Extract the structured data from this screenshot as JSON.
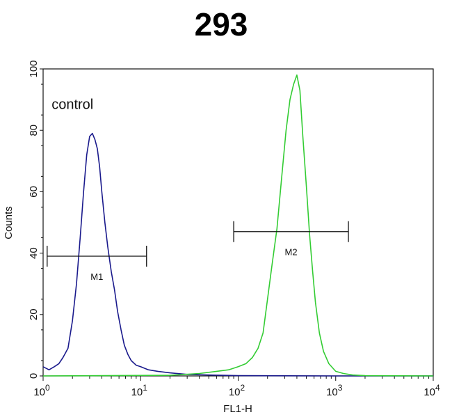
{
  "chart_data": {
    "type": "line",
    "title": "293",
    "xlabel": "FL1-H",
    "ylabel": "Counts",
    "x_scale": "log",
    "xlim": [
      1,
      10000
    ],
    "ylim": [
      0,
      100
    ],
    "x_ticks": [
      {
        "value": 1,
        "base": "10",
        "exp": "0"
      },
      {
        "value": 10,
        "base": "10",
        "exp": "1"
      },
      {
        "value": 100,
        "base": "10",
        "exp": "2"
      },
      {
        "value": 1000,
        "base": "10",
        "exp": "3"
      },
      {
        "value": 10000,
        "base": "10",
        "exp": "4"
      }
    ],
    "y_ticks": [
      0,
      20,
      40,
      60,
      80,
      100
    ],
    "grid": false,
    "annotations": [
      {
        "text": "control",
        "x": 2.0,
        "y": 87
      }
    ],
    "markers": [
      {
        "label": "M1",
        "x_start": 1.1,
        "x_end": 11.5,
        "y": 39
      },
      {
        "label": "M2",
        "x_start": 90,
        "x_end": 1350,
        "y": 47
      }
    ],
    "series": [
      {
        "color": "#1a1a8c",
        "x": [
          1,
          1.15,
          1.3,
          1.45,
          1.6,
          1.8,
          2.0,
          2.2,
          2.4,
          2.6,
          2.8,
          3.0,
          3.2,
          3.4,
          3.6,
          3.8,
          4.0,
          4.3,
          4.6,
          5.0,
          5.4,
          5.8,
          6.3,
          6.8,
          7.4,
          8.0,
          9.0,
          10,
          12,
          15,
          20,
          30,
          50,
          100,
          1000,
          10000
        ],
        "y": [
          3,
          2,
          3,
          4,
          6,
          9,
          18,
          30,
          45,
          60,
          72,
          78,
          79,
          77,
          74,
          68,
          60,
          50,
          42,
          34,
          28,
          21,
          15,
          10,
          7,
          5,
          3.5,
          3,
          2,
          1.5,
          1,
          0.5,
          0.3,
          0.1,
          0,
          0
        ]
      },
      {
        "color": "#33cc33",
        "x": [
          1,
          20,
          40,
          60,
          80,
          100,
          120,
          140,
          160,
          180,
          200,
          220,
          250,
          280,
          310,
          340,
          370,
          400,
          430,
          460,
          500,
          540,
          580,
          620,
          680,
          750,
          850,
          1000,
          1200,
          1500,
          2000,
          10000
        ],
        "y": [
          0,
          0.2,
          0.8,
          1.5,
          2,
          3,
          4,
          6,
          9,
          14,
          25,
          35,
          48,
          65,
          80,
          90,
          95,
          98,
          93,
          78,
          62,
          46,
          34,
          24,
          14,
          8,
          4,
          1.5,
          0.8,
          0.3,
          0.1,
          0
        ]
      }
    ]
  }
}
